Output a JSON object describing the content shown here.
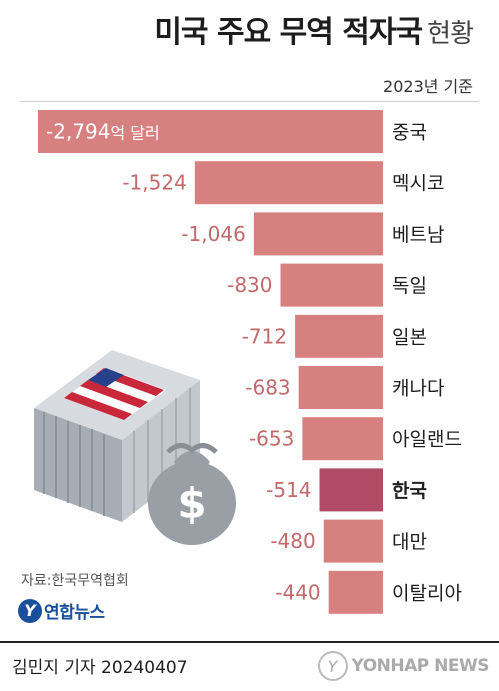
{
  "header": {
    "title_main": "미국 주요 무역 적자국",
    "title_sub": "현황",
    "basis": "2023년 기준"
  },
  "unit_label": "억 달러",
  "source": "자료:한국무역협회",
  "logo_text": "연합뉴스",
  "footer": {
    "author": "김민지 기자  20240407",
    "watermark": "YONHAP NEWS"
  },
  "colors": {
    "bar": "#d78080",
    "highlight_bar": "#b14a64",
    "value_text": "#c26a6a",
    "first_value_text": "#ffffff"
  },
  "illustration": {
    "description_icons": [
      "shipping-container-icon",
      "us-flag-icon",
      "money-bag-icon"
    ]
  },
  "chart_data": {
    "type": "bar",
    "orientation": "horizontal",
    "categories": [
      "중국",
      "멕시코",
      "베트남",
      "독일",
      "일본",
      "캐나다",
      "아일랜드",
      "한국",
      "대만",
      "이탈리아"
    ],
    "values": [
      -2794,
      -1524,
      -1046,
      -830,
      -712,
      -683,
      -653,
      -514,
      -480,
      -440
    ],
    "value_labels": [
      "-2,794",
      "-1,524",
      "-1,046",
      "-830",
      "-712",
      "-683",
      "-653",
      "-514",
      "-480",
      "-440"
    ],
    "highlight": "한국",
    "unit": "억 달러",
    "title": "미국 주요 무역 적자국 현황"
  }
}
